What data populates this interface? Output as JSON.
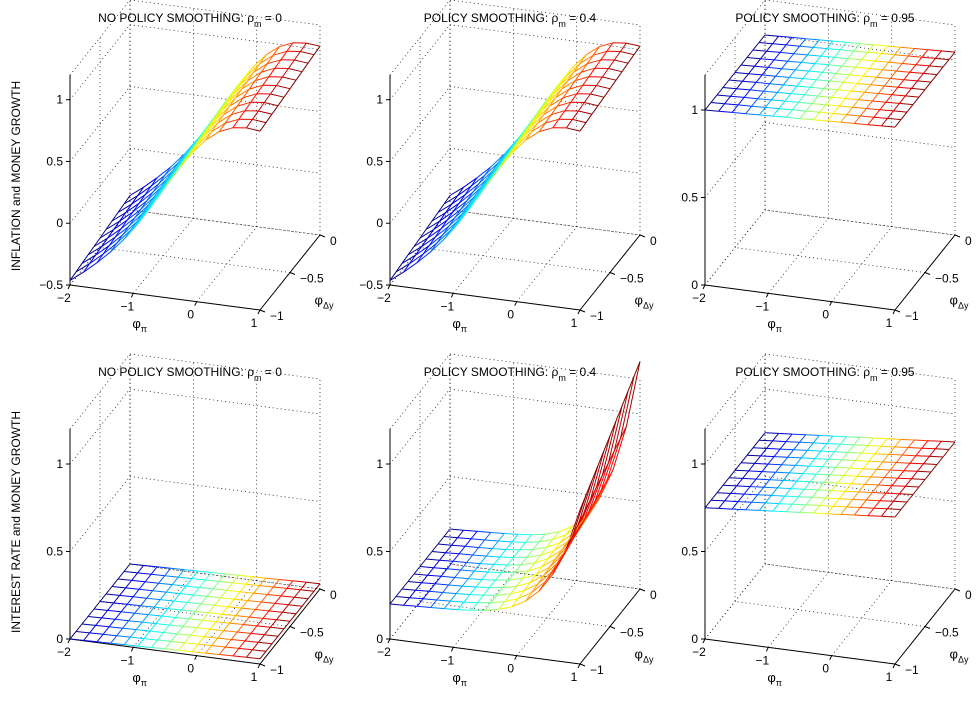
{
  "row_labels": [
    "INFLATION and MONEY GROWTH",
    "INTEREST RATE and MONEY GROWTH"
  ],
  "chart_data": [
    {
      "type": "surface",
      "title": "NO POLICY SMOOTHING: ρm = 0",
      "title_main": "NO POLICY SMOOTHING: ρ",
      "title_sub": "m",
      "title_tail": " = 0",
      "row": 0,
      "col": 0,
      "xlabel": "φ",
      "xlabel_sub": "π",
      "ylabel": "φ",
      "ylabel_sub": "Δy",
      "xlim": [
        -2,
        1
      ],
      "ylim": [
        -1,
        0
      ],
      "zlim": [
        -0.5,
        1.2
      ],
      "xticks": [
        -2,
        -1,
        0,
        1
      ],
      "xtick_labels": [
        "−2",
        "−1",
        "0",
        "1"
      ],
      "yticks": [
        -1,
        -0.5,
        0
      ],
      "ytick_labels": [
        "−1",
        "−0.5",
        "0"
      ],
      "zticks": [
        -0.5,
        0,
        0.5,
        1
      ],
      "ztick_labels": [
        "−0.5",
        "0",
        "0.5",
        "1"
      ],
      "grid": true,
      "surface_model": "ridge",
      "surface_params": {
        "a": 0.05,
        "b": 0.45,
        "c": 0.4,
        "d": 0.3
      },
      "grid_n": [
        15,
        11
      ],
      "colormap": "jet"
    },
    {
      "type": "surface",
      "title": "POLICY SMOOTHING: ρm = 0.4",
      "title_main": "POLICY SMOOTHING: ρ",
      "title_sub": "m",
      "title_tail": " = 0.4",
      "row": 0,
      "col": 1,
      "xlabel": "φ",
      "xlabel_sub": "π",
      "ylabel": "φ",
      "ylabel_sub": "Δy",
      "xlim": [
        -2,
        1
      ],
      "ylim": [
        -1,
        0
      ],
      "zlim": [
        -0.5,
        1.2
      ],
      "xticks": [
        -2,
        -1,
        0,
        1
      ],
      "xtick_labels": [
        "−2",
        "−1",
        "0",
        "1"
      ],
      "yticks": [
        -1,
        -0.5,
        0
      ],
      "ytick_labels": [
        "−1",
        "−0.5",
        "0"
      ],
      "zticks": [
        -0.5,
        0,
        0.5,
        1
      ],
      "ztick_labels": [
        "−0.5",
        "0",
        "0.5",
        "1"
      ],
      "grid": true,
      "surface_model": "ridge",
      "surface_params": {
        "a": 0.05,
        "b": 0.5,
        "c": 0.45,
        "d": 0.35
      },
      "grid_n": [
        15,
        11
      ],
      "colormap": "jet"
    },
    {
      "type": "surface",
      "title": "POLICY SMOOTHING: ρm = 0.95",
      "title_main": "POLICY SMOOTHING: ρ",
      "title_sub": "m",
      "title_tail": " = 0.95",
      "row": 0,
      "col": 2,
      "xlabel": "φ",
      "xlabel_sub": "π",
      "ylabel": "φ",
      "ylabel_sub": "Δy",
      "xlim": [
        -2,
        1
      ],
      "ylim": [
        -1,
        0
      ],
      "zlim": [
        0,
        1.2
      ],
      "xticks": [
        -2,
        -1,
        0,
        1
      ],
      "xtick_labels": [
        "−2",
        "−1",
        "0",
        "1"
      ],
      "yticks": [
        -1,
        -0.5,
        0
      ],
      "ytick_labels": [
        "−1",
        "−0.5",
        "0"
      ],
      "zticks": [
        0,
        0.5,
        1
      ],
      "ztick_labels": [
        "0",
        "0.5",
        "1"
      ],
      "grid": true,
      "surface_model": "plane",
      "surface_params": {
        "base": 1.0,
        "slope": 0.015
      },
      "grid_n": [
        15,
        11
      ],
      "colormap": "jet"
    },
    {
      "type": "surface",
      "title": "NO POLICY SMOOTHING: ρm = 0",
      "title_main": "NO POLICY SMOOTHING: ρ",
      "title_sub": "m",
      "title_tail": " = 0",
      "row": 1,
      "col": 0,
      "xlabel": "φ",
      "xlabel_sub": "π",
      "ylabel": "φ",
      "ylabel_sub": "Δy",
      "xlim": [
        -2,
        1
      ],
      "ylim": [
        -1,
        0
      ],
      "zlim": [
        0,
        1.2
      ],
      "xticks": [
        -2,
        -1,
        0,
        1
      ],
      "xtick_labels": [
        "−2",
        "−1",
        "0",
        "1"
      ],
      "yticks": [
        -1,
        -0.5,
        0
      ],
      "ytick_labels": [
        "−1",
        "−0.5",
        "0"
      ],
      "zticks": [
        0,
        0.5,
        1
      ],
      "ztick_labels": [
        "0",
        "0.5",
        "1"
      ],
      "grid": true,
      "surface_model": "plane",
      "surface_params": {
        "base": 0.0,
        "slope": 0.01
      },
      "grid_n": [
        15,
        11
      ],
      "colormap": "jet"
    },
    {
      "type": "surface",
      "title": "POLICY SMOOTHING: ρm = 0.4",
      "title_main": "POLICY SMOOTHING: ρ",
      "title_sub": "m",
      "title_tail": " = 0.4",
      "row": 1,
      "col": 1,
      "xlabel": "φ",
      "xlabel_sub": "π",
      "ylabel": "φ",
      "ylabel_sub": "Δy",
      "xlim": [
        -2,
        1
      ],
      "ylim": [
        -1,
        0
      ],
      "zlim": [
        0,
        1.2
      ],
      "xticks": [
        -2,
        -1,
        0,
        1
      ],
      "xtick_labels": [
        "−2",
        "−1",
        "0",
        "1"
      ],
      "yticks": [
        -1,
        -0.5,
        0
      ],
      "ytick_labels": [
        "−1",
        "−0.5",
        "0"
      ],
      "zticks": [
        0,
        0.5,
        1
      ],
      "ztick_labels": [
        "0",
        "0.5",
        "1"
      ],
      "grid": true,
      "surface_model": "bowl",
      "surface_params": {
        "base": 0.2,
        "k": 0.6
      },
      "grid_n": [
        15,
        11
      ],
      "colormap": "jet"
    },
    {
      "type": "surface",
      "title": "POLICY SMOOTHING: ρm = 0.95",
      "title_main": "POLICY SMOOTHING: ρ",
      "title_sub": "m",
      "title_tail": " = 0.95",
      "row": 1,
      "col": 2,
      "xlabel": "φ",
      "xlabel_sub": "π",
      "ylabel": "φ",
      "ylabel_sub": "Δy",
      "xlim": [
        -2,
        1
      ],
      "ylim": [
        -1,
        0
      ],
      "zlim": [
        0,
        1.2
      ],
      "xticks": [
        -2,
        -1,
        0,
        1
      ],
      "xtick_labels": [
        "−2",
        "−1",
        "0",
        "1"
      ],
      "yticks": [
        -1,
        -0.5,
        0
      ],
      "ytick_labels": [
        "−1",
        "−0.5",
        "0"
      ],
      "zticks": [
        0,
        0.5,
        1
      ],
      "ztick_labels": [
        "0",
        "0.5",
        "1"
      ],
      "grid": true,
      "surface_model": "plane",
      "surface_params": {
        "base": 0.75,
        "slope": 0.03
      },
      "grid_n": [
        15,
        11
      ],
      "colormap": "jet"
    }
  ]
}
